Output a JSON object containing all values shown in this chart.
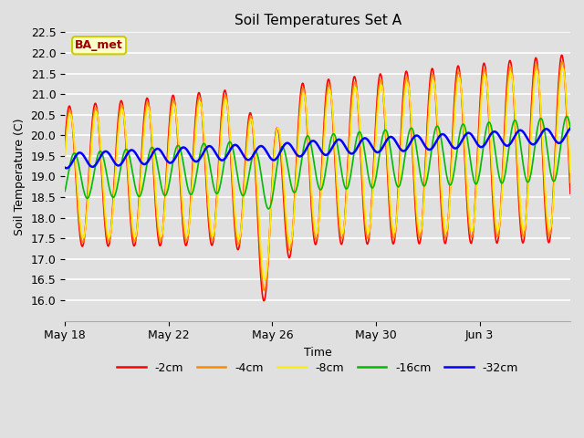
{
  "title": "Soil Temperatures Set A",
  "xlabel": "Time",
  "ylabel": "Soil Temperature (C)",
  "ylim": [
    15.5,
    22.5
  ],
  "yticks": [
    16.0,
    16.5,
    17.0,
    17.5,
    18.0,
    18.5,
    19.0,
    19.5,
    20.0,
    20.5,
    21.0,
    21.5,
    22.0,
    22.5
  ],
  "bg_color": "#e0e0e0",
  "plot_bg_color": "#e0e0e0",
  "grid_color": "#ffffff",
  "annotation_text": "BA_met",
  "annotation_box_color": "#ffffcc",
  "annotation_text_color": "#990000",
  "series": [
    {
      "label": "-2cm",
      "color": "#ff0000",
      "lw": 1.2
    },
    {
      "label": "-4cm",
      "color": "#ff8800",
      "lw": 1.2
    },
    {
      "label": "-8cm",
      "color": "#ffee00",
      "lw": 1.2
    },
    {
      "label": "-16cm",
      "color": "#00bb00",
      "lw": 1.2
    },
    {
      "label": "-32cm",
      "color": "#0000ff",
      "lw": 1.8
    }
  ],
  "duration_days": 19.5,
  "xtick_labels": [
    "May 18",
    "May 22",
    "May 26",
    "May 30",
    "Jun 3"
  ],
  "xtick_positions": [
    0,
    4,
    8,
    12,
    16
  ],
  "figwidth": 6.4,
  "figheight": 4.8,
  "dpi": 100
}
